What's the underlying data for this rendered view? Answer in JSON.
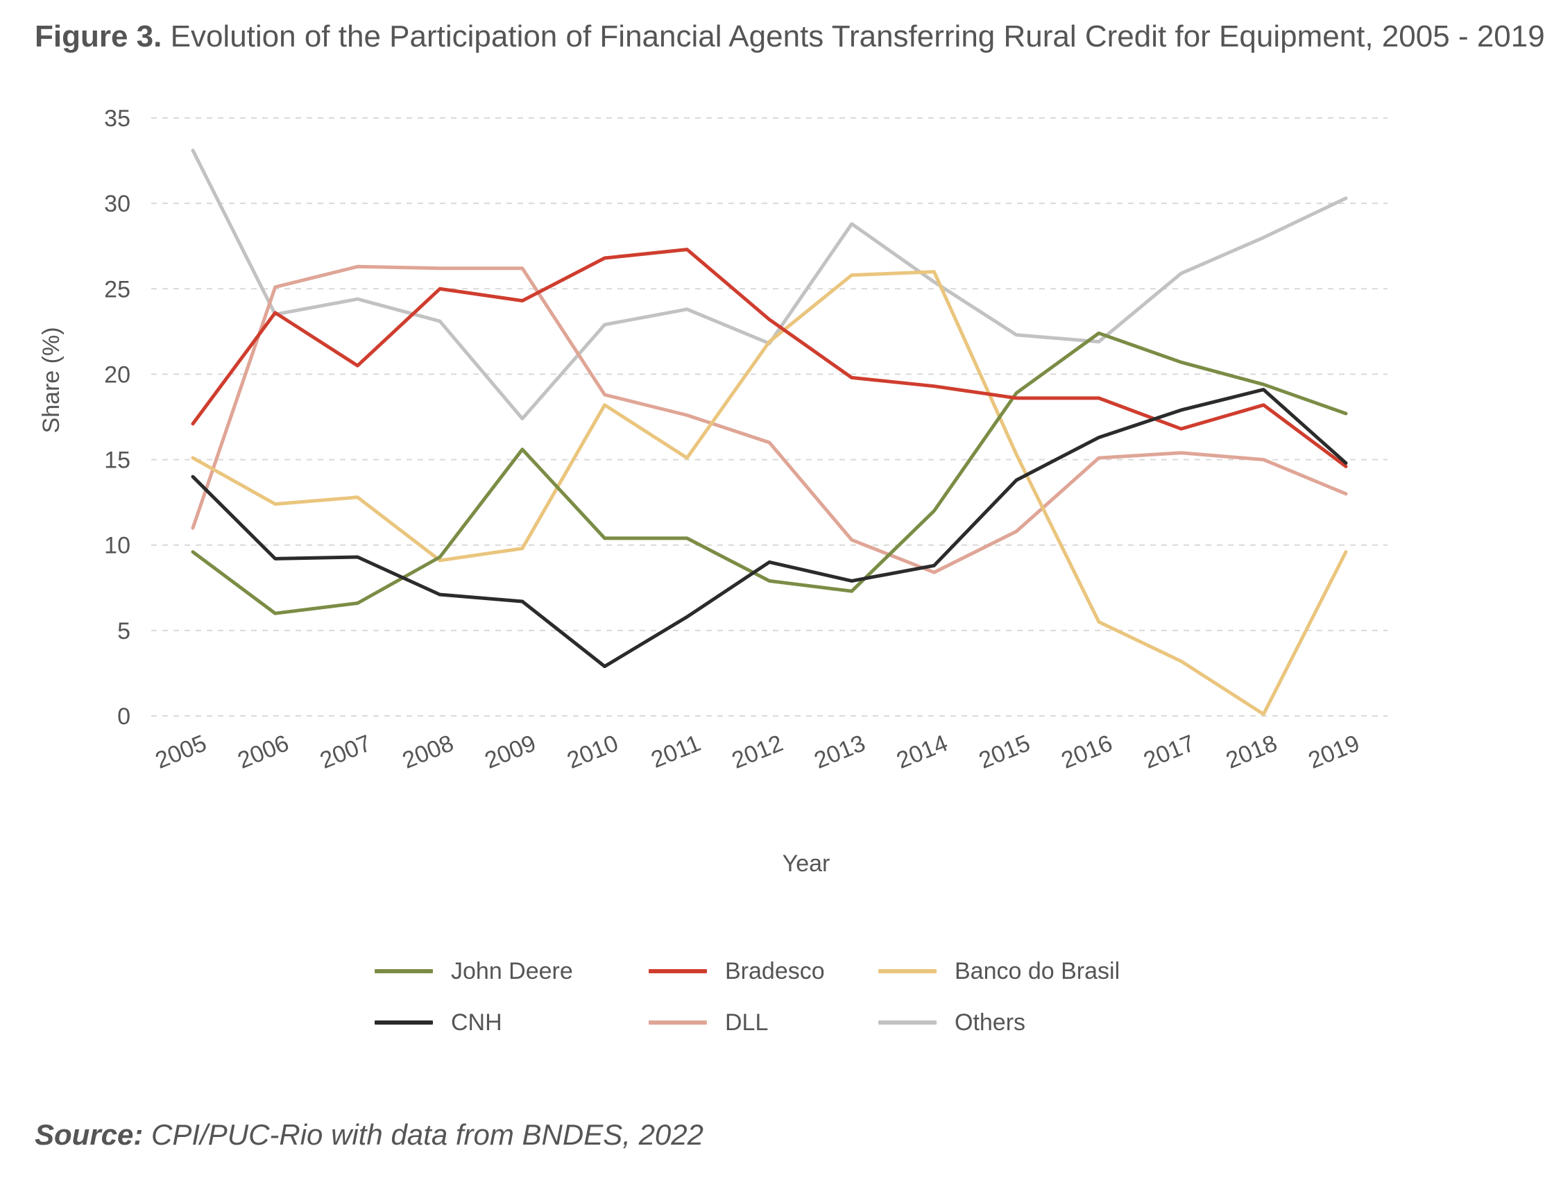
{
  "header": {
    "figure_label": "Figure 3.",
    "title": "Evolution of the Participation of Financial Agents Transferring Rural Credit for Equipment, 2005 - 2019"
  },
  "footer": {
    "source_label": "Source:",
    "source_text": "CPI/PUC-Rio with data from BNDES, 2022"
  },
  "chart_data": {
    "type": "line",
    "xlabel": "Year",
    "ylabel": "Share (%)",
    "ylim": [
      0,
      35
    ],
    "yticks": [
      0,
      5,
      10,
      15,
      20,
      25,
      30,
      35
    ],
    "grid": "horizontal dashed",
    "legend_position": "bottom",
    "categories": [
      "2005",
      "2006",
      "2007",
      "2008",
      "2009",
      "2010",
      "2011",
      "2012",
      "2013",
      "2014",
      "2015",
      "2016",
      "2017",
      "2018",
      "2019"
    ],
    "series": [
      {
        "name": "John Deere",
        "color": "#7b8c45",
        "values": [
          9.6,
          6.0,
          6.6,
          9.3,
          15.6,
          10.4,
          10.4,
          7.9,
          7.3,
          12.0,
          18.9,
          22.4,
          20.7,
          19.4,
          17.7
        ]
      },
      {
        "name": "Bradesco",
        "color": "#cf3d2e",
        "values": [
          17.1,
          23.6,
          20.5,
          25.0,
          24.3,
          26.8,
          27.3,
          23.2,
          19.8,
          19.3,
          18.6,
          18.6,
          16.8,
          18.2,
          14.6
        ]
      },
      {
        "name": "Banco do Brasil",
        "color": "#eac57d",
        "values": [
          15.1,
          12.4,
          12.8,
          9.1,
          9.8,
          18.2,
          15.1,
          21.9,
          25.8,
          26.0,
          15.3,
          5.5,
          3.2,
          0.1,
          9.6
        ]
      },
      {
        "name": "CNH",
        "color": "#2b2b2b",
        "values": [
          14.0,
          9.2,
          9.3,
          7.1,
          6.7,
          2.9,
          5.8,
          9.0,
          7.9,
          8.8,
          13.8,
          16.3,
          17.9,
          19.1,
          14.8
        ]
      },
      {
        "name": "DLL",
        "color": "#dfa596",
        "values": [
          11.0,
          25.1,
          26.3,
          26.2,
          26.2,
          18.8,
          17.6,
          16.0,
          10.3,
          8.4,
          10.8,
          15.1,
          15.4,
          15.0,
          13.0
        ]
      },
      {
        "name": "Others",
        "color": "#c2c2c2",
        "values": [
          33.1,
          23.5,
          24.4,
          23.1,
          17.4,
          22.9,
          23.8,
          21.8,
          28.8,
          25.4,
          22.3,
          21.9,
          25.9,
          28.0,
          30.3
        ]
      }
    ]
  }
}
